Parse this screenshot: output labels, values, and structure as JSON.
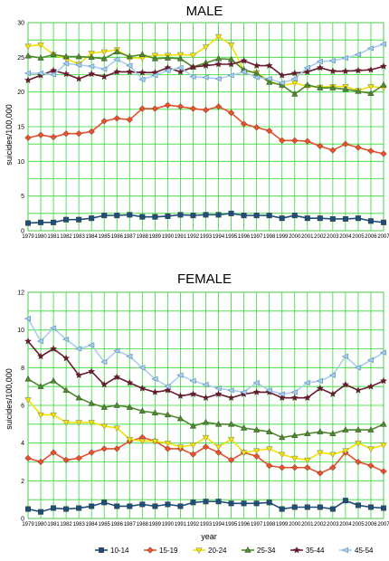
{
  "chart_data": [
    {
      "type": "line",
      "title": "MALE",
      "xlabel": "",
      "ylabel": "suicides/100,000",
      "ylim": [
        0,
        30
      ],
      "yticks": [
        0,
        5,
        10,
        15,
        20,
        25,
        30
      ],
      "grid": true,
      "x": [
        "1979",
        "1980",
        "1981",
        "1982",
        "1983",
        "1984",
        "1985",
        "1986",
        "1987",
        "1988",
        "1989",
        "1990",
        "1991",
        "1992",
        "1993",
        "1994",
        "1995",
        "1996",
        "1997",
        "1998",
        "1999",
        "2000",
        "2001",
        "2002",
        "2003",
        "2004",
        "2005",
        "2006",
        "2007"
      ],
      "series": [
        {
          "name": "10-14",
          "color": "#1f4e79",
          "marker": "square",
          "values": [
            1.1,
            1.2,
            1.2,
            1.6,
            1.6,
            1.8,
            2.2,
            2.2,
            2.3,
            2.0,
            2.0,
            2.1,
            2.3,
            2.2,
            2.3,
            2.3,
            2.5,
            2.2,
            2.2,
            2.2,
            1.8,
            2.2,
            1.8,
            1.8,
            1.7,
            1.7,
            1.8,
            1.4,
            1.2
          ]
        },
        {
          "name": "15-19",
          "color": "#e8502a",
          "marker": "diamond",
          "values": [
            13.4,
            13.8,
            13.5,
            14.0,
            14.0,
            14.3,
            15.8,
            16.2,
            16.0,
            17.6,
            17.6,
            18.1,
            17.9,
            17.6,
            17.4,
            17.9,
            17.0,
            15.4,
            14.9,
            14.4,
            13.0,
            13.0,
            12.9,
            12.2,
            11.6,
            12.5,
            12.0,
            11.5,
            11.1
          ]
        },
        {
          "name": "20-24",
          "color": "#f2e200",
          "marker": "triangle-down",
          "values": [
            26.6,
            26.8,
            25.4,
            24.8,
            24.0,
            25.6,
            25.8,
            26.1,
            24.9,
            24.9,
            25.3,
            25.3,
            25.4,
            25.3,
            26.5,
            28.0,
            26.8,
            23.0,
            22.8,
            21.6,
            20.9,
            21.3,
            20.8,
            20.7,
            20.8,
            20.8,
            20.2,
            20.8,
            20.6
          ]
        },
        {
          "name": "25-34",
          "color": "#4b8a2a",
          "marker": "triangle-up",
          "values": [
            25.2,
            24.9,
            25.4,
            25.1,
            25.1,
            25.0,
            24.8,
            25.8,
            25.1,
            25.4,
            24.8,
            24.9,
            24.8,
            23.6,
            24.2,
            24.8,
            24.7,
            23.2,
            22.7,
            21.4,
            21.0,
            19.7,
            21.0,
            20.6,
            20.6,
            20.4,
            20.1,
            19.8,
            21.0
          ]
        },
        {
          "name": "35-44",
          "color": "#6b1a2a",
          "marker": "star",
          "values": [
            21.7,
            22.4,
            23.1,
            22.6,
            21.9,
            22.6,
            22.2,
            22.9,
            22.9,
            22.8,
            22.8,
            23.5,
            22.9,
            23.6,
            23.8,
            24.0,
            24.0,
            24.5,
            23.8,
            23.8,
            22.4,
            22.7,
            22.9,
            23.5,
            23.0,
            23.0,
            23.1,
            23.2,
            23.7
          ]
        },
        {
          "name": "45-54",
          "color": "#a9cdef",
          "marker": "triangle-left",
          "values": [
            22.7,
            22.7,
            22.5,
            24.1,
            23.9,
            23.7,
            23.3,
            24.7,
            23.8,
            21.8,
            22.4,
            23.1,
            23.5,
            22.2,
            22.1,
            21.9,
            22.4,
            22.9,
            22.1,
            21.9,
            21.3,
            21.9,
            23.5,
            24.4,
            24.5,
            24.9,
            25.4,
            26.3,
            26.9
          ]
        }
      ]
    },
    {
      "type": "line",
      "title": "FEMALE",
      "xlabel": "year",
      "ylabel": "suicides/100,000",
      "ylim": [
        0,
        12
      ],
      "yticks": [
        0,
        2,
        4,
        6,
        8,
        10,
        12
      ],
      "grid": true,
      "x": [
        "1979",
        "1980",
        "1981",
        "1982",
        "1983",
        "1984",
        "1985",
        "1986",
        "1987",
        "1988",
        "1989",
        "1990",
        "1991",
        "1992",
        "1993",
        "1994",
        "1995",
        "1996",
        "1997",
        "1998",
        "1999",
        "2000",
        "2001",
        "2002",
        "2003",
        "2004",
        "2005",
        "2006",
        "2007"
      ],
      "series": [
        {
          "name": "10-14",
          "color": "#1f4e79",
          "marker": "square",
          "values": [
            0.5,
            0.35,
            0.55,
            0.5,
            0.55,
            0.65,
            0.85,
            0.65,
            0.65,
            0.75,
            0.65,
            0.75,
            0.65,
            0.85,
            0.9,
            0.9,
            0.8,
            0.8,
            0.8,
            0.85,
            0.5,
            0.6,
            0.6,
            0.6,
            0.5,
            0.95,
            0.7,
            0.6,
            0.55
          ]
        },
        {
          "name": "15-19",
          "color": "#e8502a",
          "marker": "diamond",
          "values": [
            3.2,
            3.0,
            3.5,
            3.1,
            3.2,
            3.5,
            3.7,
            3.7,
            4.1,
            4.3,
            4.1,
            3.7,
            3.7,
            3.4,
            3.8,
            3.5,
            3.1,
            3.5,
            3.3,
            2.8,
            2.7,
            2.7,
            2.7,
            2.4,
            2.7,
            3.5,
            3.0,
            2.8,
            2.5
          ]
        },
        {
          "name": "20-24",
          "color": "#f2e200",
          "marker": "triangle-down",
          "values": [
            6.3,
            5.5,
            5.5,
            5.1,
            5.1,
            5.1,
            4.9,
            4.8,
            4.2,
            4.1,
            4.1,
            4.0,
            3.8,
            3.9,
            4.3,
            3.8,
            4.2,
            3.5,
            3.6,
            3.7,
            3.4,
            3.2,
            3.1,
            3.5,
            3.4,
            3.6,
            4.0,
            3.7,
            3.9
          ]
        },
        {
          "name": "25-34",
          "color": "#4b8a2a",
          "marker": "triangle-up",
          "values": [
            7.4,
            7.0,
            7.3,
            6.8,
            6.4,
            6.1,
            5.9,
            6.0,
            5.9,
            5.7,
            5.6,
            5.5,
            5.3,
            4.9,
            5.1,
            5.0,
            5.0,
            4.8,
            4.7,
            4.6,
            4.3,
            4.4,
            4.5,
            4.6,
            4.5,
            4.7,
            4.7,
            4.7,
            5.0
          ]
        },
        {
          "name": "35-44",
          "color": "#6b1a2a",
          "marker": "star",
          "values": [
            9.4,
            8.6,
            9.0,
            8.5,
            7.6,
            7.8,
            7.1,
            7.5,
            7.2,
            6.9,
            6.7,
            6.8,
            6.5,
            6.6,
            6.4,
            6.6,
            6.4,
            6.6,
            6.7,
            6.7,
            6.4,
            6.4,
            6.4,
            6.9,
            6.6,
            7.1,
            6.8,
            7.0,
            7.3
          ]
        },
        {
          "name": "45-54",
          "color": "#a9cdef",
          "marker": "triangle-left",
          "values": [
            10.6,
            9.4,
            10.1,
            9.5,
            9.0,
            9.2,
            8.3,
            8.9,
            8.6,
            8.0,
            7.4,
            7.0,
            7.6,
            7.3,
            7.1,
            6.9,
            6.8,
            6.7,
            7.2,
            6.8,
            6.6,
            6.7,
            7.2,
            7.3,
            7.6,
            8.6,
            8.0,
            8.4,
            8.8
          ]
        }
      ]
    }
  ],
  "legend": {
    "placement": "bottom",
    "items": [
      "10-14",
      "15-19",
      "20-24",
      "25-34",
      "35-44",
      "45-54"
    ]
  },
  "colors": {
    "plot_background": "#ffffff",
    "gridline": "#33d933"
  }
}
